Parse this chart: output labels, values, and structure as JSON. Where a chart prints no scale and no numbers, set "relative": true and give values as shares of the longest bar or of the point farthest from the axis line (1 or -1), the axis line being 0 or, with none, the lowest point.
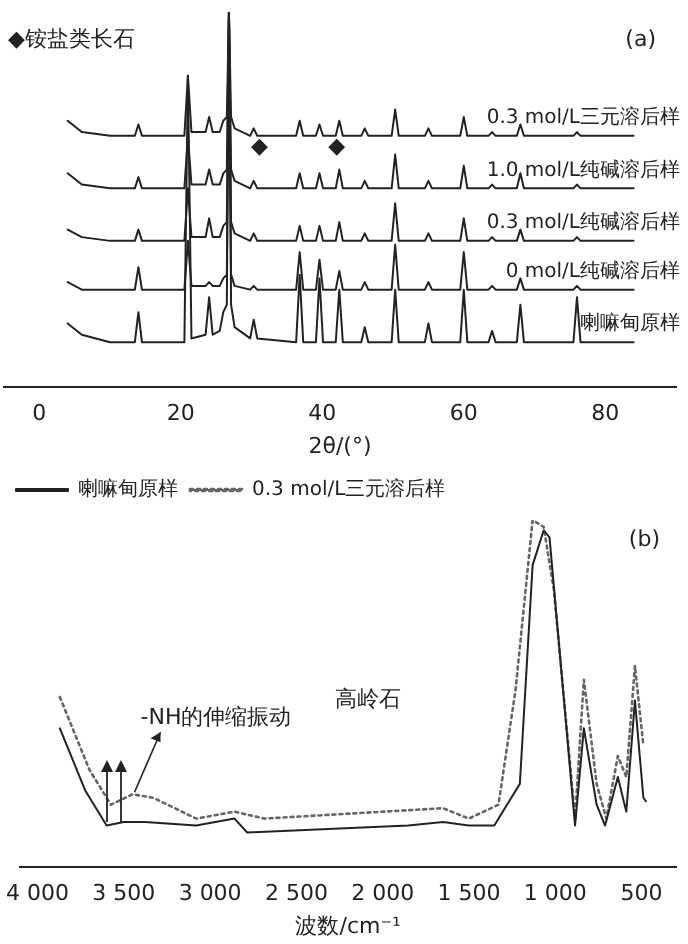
{
  "chart_data": [
    {
      "type": "line",
      "relative": true,
      "xlabel": "2θ/(°)",
      "xlim": [
        -5,
        90
      ],
      "xticks": [
        0,
        20,
        40,
        60,
        80
      ],
      "marker": "none",
      "legend": false,
      "annotations": [
        "◆铵盐类长石",
        "(a)",
        "◆",
        "◆"
      ],
      "x": [
        4,
        6,
        10,
        13.5,
        14,
        14.5,
        20.5,
        21,
        21.5,
        23.5,
        24,
        24.5,
        25.5,
        26,
        26.5,
        26.8,
        27.1,
        27.6,
        29.8,
        30.3,
        30.8,
        36.3,
        36.8,
        37.3,
        39.1,
        39.6,
        40.1,
        41.9,
        42.4,
        42.9,
        45.5,
        46,
        46.5,
        49.8,
        50.3,
        50.8,
        54.5,
        55,
        55.5,
        59.5,
        60,
        60.5,
        63.5,
        64,
        64.5,
        67.5,
        68,
        68.5,
        75.5,
        76,
        76.5,
        84
      ],
      "series": [
        {
          "name": "0.3 mol/L三元溶后样",
          "color": "#222222",
          "line_style": "solid",
          "values": [
            0.71,
            0.68,
            0.67,
            0.67,
            0.7,
            0.67,
            0.67,
            0.83,
            0.68,
            0.68,
            0.72,
            0.68,
            0.68,
            0.71,
            0.72,
            1,
            0.72,
            0.69,
            0.67,
            0.69,
            0.67,
            0.67,
            0.71,
            0.67,
            0.67,
            0.7,
            0.67,
            0.67,
            0.71,
            0.67,
            0.67,
            0.69,
            0.67,
            0.67,
            0.74,
            0.67,
            0.67,
            0.69,
            0.67,
            0.67,
            0.72,
            0.67,
            0.67,
            0.68,
            0.67,
            0.67,
            0.7,
            0.67,
            0.67,
            0.68,
            0.67,
            0.67
          ]
        },
        {
          "name": "1.0 mol/L纯碱溶后样",
          "color": "#222222",
          "line_style": "solid",
          "values": [
            0.57,
            0.54,
            0.53,
            0.53,
            0.56,
            0.53,
            0.53,
            0.67,
            0.54,
            0.54,
            0.58,
            0.54,
            0.54,
            0.57,
            0.58,
            1,
            0.58,
            0.55,
            0.53,
            0.55,
            0.53,
            0.53,
            0.57,
            0.53,
            0.53,
            0.57,
            0.53,
            0.53,
            0.58,
            0.53,
            0.53,
            0.55,
            0.53,
            0.53,
            0.62,
            0.53,
            0.53,
            0.55,
            0.53,
            0.53,
            0.59,
            0.53,
            0.53,
            0.54,
            0.53,
            0.53,
            0.57,
            0.53,
            0.53,
            0.54,
            0.53,
            0.53
          ]
        },
        {
          "name": "0.3 mol/L纯碱溶后样",
          "color": "#222222",
          "line_style": "solid",
          "values": [
            0.42,
            0.4,
            0.39,
            0.39,
            0.42,
            0.39,
            0.39,
            0.53,
            0.4,
            0.4,
            0.45,
            0.4,
            0.4,
            0.43,
            0.44,
            1,
            0.44,
            0.41,
            0.39,
            0.41,
            0.39,
            0.39,
            0.43,
            0.39,
            0.39,
            0.43,
            0.39,
            0.39,
            0.44,
            0.39,
            0.39,
            0.41,
            0.39,
            0.39,
            0.49,
            0.39,
            0.39,
            0.41,
            0.39,
            0.39,
            0.45,
            0.39,
            0.39,
            0.4,
            0.39,
            0.39,
            0.42,
            0.39,
            0.39,
            0.4,
            0.39,
            0.39
          ]
        },
        {
          "name": "0 mol/L纯碱溶后样",
          "color": "#222222",
          "line_style": "solid",
          "values": [
            0.28,
            0.26,
            0.26,
            0.26,
            0.32,
            0.26,
            0.26,
            0.39,
            0.27,
            0.27,
            0.28,
            0.27,
            0.27,
            0.29,
            0.3,
            1,
            0.3,
            0.27,
            0.26,
            0.27,
            0.26,
            0.26,
            0.36,
            0.26,
            0.26,
            0.34,
            0.26,
            0.26,
            0.31,
            0.26,
            0.26,
            0.28,
            0.26,
            0.26,
            0.38,
            0.26,
            0.26,
            0.28,
            0.26,
            0.26,
            0.36,
            0.26,
            0.26,
            0.27,
            0.26,
            0.26,
            0.29,
            0.26,
            0.26,
            0.27,
            0.26,
            0.26
          ]
        },
        {
          "name": "喇嘛甸原样",
          "color": "#222222",
          "line_style": "solid",
          "values": [
            0.17,
            0.14,
            0.12,
            0.12,
            0.2,
            0.12,
            0.12,
            0.83,
            0.13,
            0.14,
            0.24,
            0.14,
            0.15,
            0.2,
            0.22,
            1,
            0.22,
            0.16,
            0.13,
            0.18,
            0.13,
            0.12,
            0.3,
            0.12,
            0.12,
            0.29,
            0.12,
            0.12,
            0.26,
            0.12,
            0.12,
            0.16,
            0.12,
            0.12,
            0.26,
            0.12,
            0.12,
            0.17,
            0.12,
            0.12,
            0.26,
            0.12,
            0.12,
            0.15,
            0.12,
            0.12,
            0.22,
            0.12,
            0.12,
            0.24,
            0.12,
            0.12
          ]
        }
      ]
    },
    {
      "type": "line",
      "relative": true,
      "xlabel": "波数/cm⁻¹",
      "xlim": [
        4100,
        300
      ],
      "xticks": [
        {
          "value": 4000,
          "label": "4 000"
        },
        {
          "value": 3500,
          "label": "3 500"
        },
        {
          "value": 3000,
          "label": "3 000"
        },
        {
          "value": 2500,
          "label": "2 500"
        },
        {
          "value": 2000,
          "label": "2 000"
        },
        {
          "value": 1500,
          "label": "1 500"
        },
        {
          "value": 1000,
          "label": "1 000"
        },
        500
      ],
      "marker": "none",
      "legend": "top left",
      "annotations": [
        "(b)",
        "高岭石",
        {
          "text": "-NH的伸缩振动",
          "x": 3450,
          "y": 0.21
        }
      ],
      "series": [
        {
          "name": "喇嘛甸原样",
          "color": "#222222",
          "line_style": "solid",
          "x": [
            3871,
            3723,
            3600,
            3500,
            3378,
            3081,
            2859,
            2785,
            1852,
            1650,
            1501,
            1353,
            1205,
            1131,
            1067,
            1033,
            885,
            834,
            760,
            711,
            637,
            588,
            538,
            489,
            474
          ],
          "values": [
            0.4,
            0.22,
            0.12,
            0.13,
            0.13,
            0.12,
            0.14,
            0.1,
            0.12,
            0.13,
            0.12,
            0.12,
            0.24,
            0.87,
            0.97,
            0.95,
            0.12,
            0.4,
            0.18,
            0.12,
            0.26,
            0.16,
            0.48,
            0.2,
            0.19
          ]
        },
        {
          "name": "0.3 mol/L三元溶后样",
          "color": "#666666",
          "line_style": "dotted",
          "x": [
            3871,
            3699,
            3575,
            3450,
            3329,
            3081,
            2859,
            2686,
            1650,
            1501,
            1329,
            1230,
            1131,
            1067,
            1008,
            885,
            834,
            760,
            704,
            637,
            588,
            538,
            489
          ],
          "values": [
            0.49,
            0.28,
            0.18,
            0.21,
            0.2,
            0.14,
            0.16,
            0.14,
            0.17,
            0.14,
            0.18,
            0.51,
            1,
            0.98,
            0.8,
            0.14,
            0.54,
            0.24,
            0.14,
            0.32,
            0.26,
            0.58,
            0.35
          ]
        }
      ]
    }
  ]
}
